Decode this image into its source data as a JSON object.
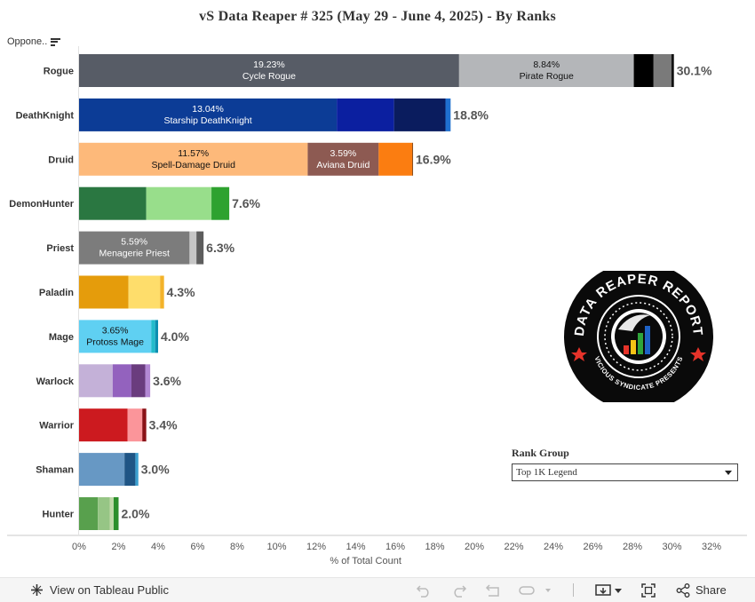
{
  "title": "vS Data Reaper #  325 (May 29 - June 4, 2025) - By Ranks",
  "opponent_label": "Oppone..",
  "chart_data": {
    "type": "bar",
    "orientation": "horizontal",
    "stacked": true,
    "xlabel": "% of Total Count",
    "xlim": [
      0,
      32
    ],
    "x_ticks": [
      "0%",
      "2%",
      "4%",
      "6%",
      "8%",
      "10%",
      "12%",
      "14%",
      "16%",
      "18%",
      "20%",
      "22%",
      "24%",
      "26%",
      "28%",
      "30%",
      "32%"
    ],
    "tick_step": 2,
    "rows": [
      {
        "category": "Rogue",
        "total": "30.1%",
        "segments": [
          {
            "value": 19.23,
            "color": "#575c66",
            "pct": "19.23%",
            "name": "Cycle Rogue",
            "text": "light"
          },
          {
            "value": 8.84,
            "color": "#b4b6b9",
            "pct": "8.84%",
            "name": "Pirate Rogue",
            "text": "dark"
          },
          {
            "value": 1.0,
            "color": "#000000"
          },
          {
            "value": 0.9,
            "color": "#7a7a7a"
          },
          {
            "value": 0.13,
            "color": "#111111"
          }
        ]
      },
      {
        "category": "DeathKnight",
        "total": "18.8%",
        "segments": [
          {
            "value": 13.04,
            "color": "#0c3c96",
            "pct": "13.04%",
            "name": "Starship DeathKnight",
            "text": "light"
          },
          {
            "value": 2.9,
            "color": "#0b1fa0"
          },
          {
            "value": 2.6,
            "color": "#0a1c5e"
          },
          {
            "value": 0.26,
            "color": "#1f6fd0"
          }
        ]
      },
      {
        "category": "Druid",
        "total": "16.9%",
        "segments": [
          {
            "value": 11.57,
            "color": "#fdb97a",
            "pct": "11.57%",
            "name": "Spell-Damage Druid",
            "text": "dark"
          },
          {
            "value": 3.59,
            "color": "#8d5a52",
            "pct": "3.59%",
            "name": "Aviana Druid",
            "text": "light"
          },
          {
            "value": 1.7,
            "color": "#fb7d11"
          },
          {
            "value": 0.04,
            "color": "#7a3b07"
          }
        ]
      },
      {
        "category": "DemonHunter",
        "total": "7.6%",
        "segments": [
          {
            "value": 3.4,
            "color": "#2a7741"
          },
          {
            "value": 3.3,
            "color": "#98de8b"
          },
          {
            "value": 0.9,
            "color": "#2ea22f"
          }
        ]
      },
      {
        "category": "Priest",
        "total": "6.3%",
        "segments": [
          {
            "value": 5.59,
            "color": "#7c7c7c",
            "pct": "5.59%",
            "name": "Menagerie Priest",
            "text": "light"
          },
          {
            "value": 0.35,
            "color": "#c6c6c6"
          },
          {
            "value": 0.36,
            "color": "#5d5d5d"
          }
        ]
      },
      {
        "category": "Paladin",
        "total": "4.3%",
        "segments": [
          {
            "value": 2.5,
            "color": "#e59c0b"
          },
          {
            "value": 1.6,
            "color": "#fedd6b"
          },
          {
            "value": 0.2,
            "color": "#f3b32a"
          }
        ]
      },
      {
        "category": "Mage",
        "total": "4.0%",
        "segments": [
          {
            "value": 3.65,
            "color": "#5fd0f2",
            "pct": "3.65%",
            "name": "Protoss Mage",
            "text": "dark"
          },
          {
            "value": 0.2,
            "color": "#23bccc"
          },
          {
            "value": 0.15,
            "color": "#0c8eb0"
          }
        ]
      },
      {
        "category": "Warlock",
        "total": "3.6%",
        "segments": [
          {
            "value": 1.7,
            "color": "#c4b1d8"
          },
          {
            "value": 0.95,
            "color": "#9362be"
          },
          {
            "value": 0.7,
            "color": "#6a3c7e"
          },
          {
            "value": 0.25,
            "color": "#b388d4"
          }
        ]
      },
      {
        "category": "Warrior",
        "total": "3.4%",
        "segments": [
          {
            "value": 2.45,
            "color": "#cc1a1f"
          },
          {
            "value": 0.75,
            "color": "#fb959a"
          },
          {
            "value": 0.2,
            "color": "#8a1116"
          }
        ]
      },
      {
        "category": "Shaman",
        "total": "3.0%",
        "segments": [
          {
            "value": 2.3,
            "color": "#6798c4"
          },
          {
            "value": 0.55,
            "color": "#1f5585"
          },
          {
            "value": 0.15,
            "color": "#3b9fcf"
          }
        ]
      },
      {
        "category": "Hunter",
        "total": "2.0%",
        "segments": [
          {
            "value": 0.95,
            "color": "#58a04d"
          },
          {
            "value": 0.6,
            "color": "#96c585"
          },
          {
            "value": 0.2,
            "color": "#bfd9a8"
          },
          {
            "value": 0.25,
            "color": "#2c8f2c"
          }
        ]
      }
    ]
  },
  "logo": {
    "top_text": "DATA REAPER REPORT",
    "bottom_text": "VICIOUS SYNDICATE PRESENTS"
  },
  "rank_group": {
    "title": "Rank Group",
    "selected": "Top 1K Legend"
  },
  "footer": {
    "view_label": "View on Tableau Public",
    "share_label": "Share"
  }
}
